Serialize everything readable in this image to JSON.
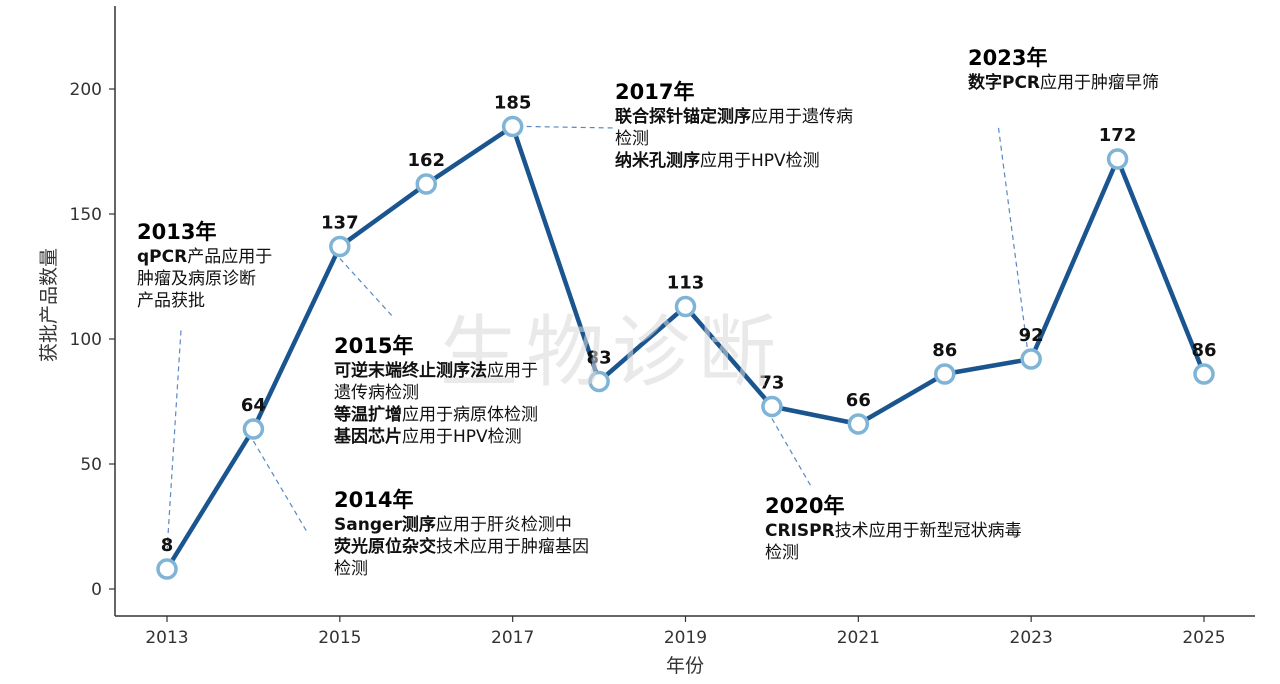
{
  "chart_data": {
    "type": "line",
    "xlabel": "年份",
    "ylabel": "获批产品数量",
    "xlim": [
      2012.7,
      2025.3
    ],
    "ylim": [
      0,
      230
    ],
    "x_ticks": [
      2013,
      2015,
      2017,
      2019,
      2021,
      2023,
      2025
    ],
    "y_ticks": [
      0,
      50,
      100,
      150,
      200
    ],
    "grid": false,
    "x": [
      2013,
      2014,
      2015,
      2016,
      2017,
      2018,
      2019,
      2020,
      2021,
      2022,
      2023,
      2024,
      2025
    ],
    "y": [
      8,
      64,
      137,
      162,
      185,
      83,
      113,
      73,
      66,
      86,
      92,
      172,
      86
    ],
    "data_labels": [
      "8",
      "64",
      "137",
      "162",
      "185",
      "83",
      "113",
      "73",
      "66",
      "86",
      "92",
      "172",
      "86"
    ],
    "line_color": "#1a5590",
    "marker_edge_color": "#7fb4d6",
    "annotations": {
      "a2013": {
        "year": "2013年",
        "lines": [
          [
            {
              "t": "qPCR",
              "b": true
            },
            {
              "t": "产品应用于",
              "b": false
            }
          ],
          [
            {
              "t": "肿瘤及病原诊断",
              "b": false
            }
          ],
          [
            {
              "t": "产品获批",
              "b": false
            }
          ]
        ]
      },
      "a2014": {
        "year": "2014年",
        "lines": [
          [
            {
              "t": "Sanger测序",
              "b": true
            },
            {
              "t": "应用于肝炎检测中",
              "b": false
            }
          ],
          [
            {
              "t": "荧光原位杂交",
              "b": true
            },
            {
              "t": "技术应用于肿瘤基因",
              "b": false
            }
          ],
          [
            {
              "t": "检测",
              "b": false
            }
          ]
        ]
      },
      "a2015": {
        "year": "2015年",
        "lines": [
          [
            {
              "t": "可逆末端终止测序法",
              "b": true
            },
            {
              "t": "应用于",
              "b": false
            }
          ],
          [
            {
              "t": "遗传病检测",
              "b": false
            }
          ],
          [
            {
              "t": "等温扩增",
              "b": true
            },
            {
              "t": "应用于病原体检测",
              "b": false
            }
          ],
          [
            {
              "t": "基因芯片",
              "b": true
            },
            {
              "t": "应用于HPV检测",
              "b": false
            }
          ]
        ]
      },
      "a2017": {
        "year": "2017年",
        "lines": [
          [
            {
              "t": "联合探针锚定测序",
              "b": true
            },
            {
              "t": "应用于遗传病",
              "b": false
            }
          ],
          [
            {
              "t": "检测",
              "b": false
            }
          ],
          [
            {
              "t": "纳米孔测序",
              "b": true
            },
            {
              "t": "应用于HPV检测",
              "b": false
            }
          ]
        ]
      },
      "a2020": {
        "year": "2020年",
        "lines": [
          [
            {
              "t": "CRISPR",
              "b": true
            },
            {
              "t": "技术应用于新型冠状病毒",
              "b": false
            }
          ],
          [
            {
              "t": "检测",
              "b": false
            }
          ]
        ]
      },
      "a2023": {
        "year": "2023年",
        "lines": [
          [
            {
              "t": "数字PCR",
              "b": true
            },
            {
              "t": "应用于肿瘤早筛",
              "b": false
            }
          ]
        ]
      }
    }
  },
  "watermark": "生物诊断"
}
